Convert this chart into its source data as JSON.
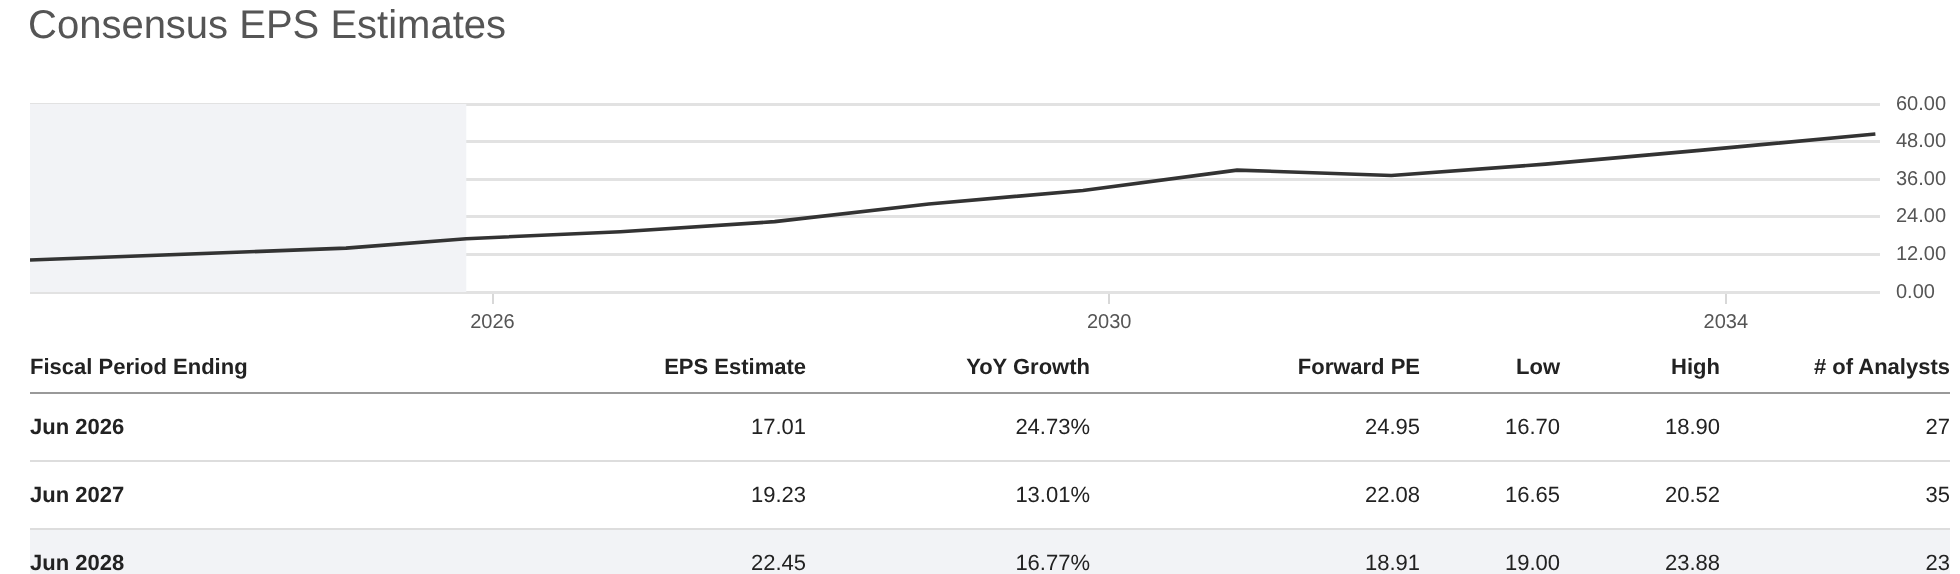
{
  "chart_data": {
    "type": "line",
    "title": "Consensus EPS Estimates",
    "x": [
      2023.0,
      2025.05,
      2025.83,
      2026.83,
      2027.83,
      2028.83,
      2029.83,
      2030.83,
      2031.83,
      2032.83,
      2033.83,
      2034.97
    ],
    "series": [
      {
        "color": "#333333",
        "values": [
          10.2,
          14.0,
          17.01,
          19.23,
          22.45,
          28.1,
          32.4,
          38.9,
          37.2,
          40.8,
          45.2,
          50.4
        ]
      }
    ],
    "xlim": [
      2023.0,
      2035.0
    ],
    "xticks": [
      2026,
      2030,
      2034
    ],
    "ylim": [
      0,
      60
    ],
    "yticks": [
      {
        "value": 0,
        "label": "0.00"
      },
      {
        "value": 12,
        "label": "12.00"
      },
      {
        "value": 24,
        "label": "24.00"
      },
      {
        "value": 36,
        "label": "36.00"
      },
      {
        "value": 48,
        "label": "48.00"
      },
      {
        "value": 60,
        "label": "60.00"
      }
    ],
    "bands": [
      {
        "axis": "x",
        "from": 2023.0,
        "to": 2025.83,
        "color": "#f2f3f6"
      }
    ],
    "grid": "y",
    "marker": "none",
    "line_style": "solid",
    "legend": false,
    "annotations": [
      "Fiscal Period Ending",
      "EPS Estimate",
      "YoY Growth",
      "Forward PE",
      "Low",
      "High",
      "# of Analysts",
      "Jun 2026",
      "17.01",
      "24.73%",
      "24.95",
      "16.70",
      "18.90",
      "27",
      "Jun 2027",
      "19.23",
      "13.01%",
      "22.08",
      "16.65",
      "20.52",
      "35",
      "Jun 2028",
      "22.45",
      "16.77%",
      "18.91",
      "19.00",
      "23.88",
      "23"
    ]
  }
}
